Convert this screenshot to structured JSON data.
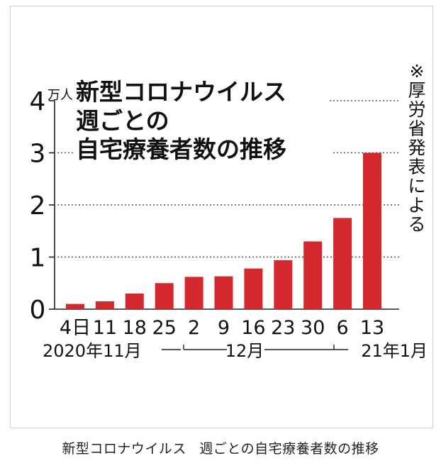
{
  "chart_data": {
    "type": "bar",
    "title": "新型コロナウイルス 週ごとの 自宅療養者数の推移",
    "title_lines": [
      "新型コロナウイルス",
      "週ごとの",
      "自宅療養者数の推移"
    ],
    "unit": "万人",
    "ylim": [
      0,
      4
    ],
    "yticks": [
      0,
      1,
      2,
      3,
      4
    ],
    "categories": [
      "4日",
      "11",
      "18",
      "25",
      "2",
      "9",
      "16",
      "23",
      "30",
      "6",
      "13"
    ],
    "values": [
      0.1,
      0.15,
      0.3,
      0.5,
      0.62,
      0.63,
      0.78,
      0.94,
      1.3,
      1.75,
      3.0
    ],
    "period_labels": [
      "2020年11月",
      "12月",
      "21年1月"
    ],
    "note": "※厚労省発表による",
    "bar_color": "#d2282e",
    "grid": "dotted at 1, 2, 3 and 4"
  },
  "caption": [
    "新型コロナウイルス",
    "週ごとの自宅療養者数の推移"
  ]
}
